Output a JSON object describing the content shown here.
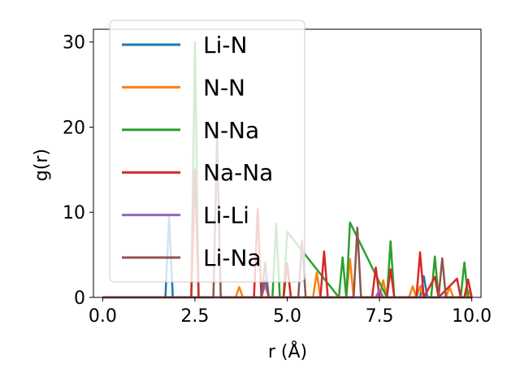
{
  "chart_data": {
    "type": "line",
    "xlabel": "r (Å)",
    "ylabel": "g(r)",
    "xlim": [
      -0.25,
      10.25
    ],
    "ylim": [
      0,
      31.5
    ],
    "xticks": [
      0.0,
      2.5,
      5.0,
      7.5,
      10.0
    ],
    "xtick_labels": [
      "0.0",
      "2.5",
      "5.0",
      "7.5",
      "10.0"
    ],
    "yticks": [
      0,
      10,
      20,
      30
    ],
    "ytick_labels": [
      "0",
      "10",
      "20",
      "30"
    ],
    "grid": false,
    "legend_position": "top-left",
    "series": [
      {
        "name": "Li-N",
        "color": "#1f77b4",
        "x": [
          0,
          1.7,
          1.8,
          1.9,
          4.3,
          4.4,
          4.5,
          7.4,
          7.5,
          7.6,
          8.6,
          8.7,
          8.8,
          10
        ],
        "y": [
          0,
          0,
          9.5,
          0,
          0,
          2.0,
          0,
          0,
          0.8,
          0,
          0,
          2.5,
          0,
          0
        ]
      },
      {
        "name": "N-N",
        "color": "#ff7f0e",
        "x": [
          0,
          3.6,
          3.7,
          3.8,
          4.9,
          5.0,
          5.1,
          5.7,
          5.8,
          5.9,
          6.6,
          6.7,
          6.8,
          7.5,
          7.6,
          7.7,
          8.3,
          8.4,
          8.5,
          8.6,
          8.7,
          9.3,
          9.4,
          9.5,
          9.8,
          9.9,
          10
        ],
        "y": [
          0,
          0,
          1.2,
          0,
          0,
          4.0,
          0,
          0,
          2.9,
          0,
          0,
          4.5,
          0,
          0,
          2.0,
          0,
          0,
          1.3,
          0,
          1.3,
          0,
          0,
          1.2,
          0,
          0,
          0.8,
          0
        ]
      },
      {
        "name": "N-Na",
        "color": "#2ca02c",
        "x": [
          0,
          2.4,
          2.5,
          2.6,
          4.6,
          4.7,
          4.8,
          4.9,
          5.0,
          6.4,
          6.5,
          6.6,
          6.7,
          7.7,
          7.8,
          7.9,
          8.9,
          9.0,
          9.1,
          9.7,
          9.8,
          9.9,
          10
        ],
        "y": [
          0,
          0,
          30.0,
          0,
          0,
          8.7,
          0,
          0,
          7.7,
          0,
          4.7,
          0,
          8.8,
          0,
          6.6,
          0,
          0,
          4.8,
          0,
          0,
          4.1,
          0,
          0
        ]
      },
      {
        "name": "Na-Na",
        "color": "#d62728",
        "x": [
          0,
          2.4,
          2.5,
          2.6,
          4.1,
          4.2,
          4.3,
          4.9,
          5.0,
          5.1,
          5.9,
          6.0,
          6.1,
          7.3,
          7.4,
          7.5,
          7.7,
          7.8,
          7.9,
          8.5,
          8.6,
          8.7,
          9.0,
          9.1,
          9.6,
          9.7,
          9.8,
          9.9,
          10
        ],
        "y": [
          0,
          0,
          15.0,
          0,
          0,
          10.4,
          0,
          0,
          4.0,
          0,
          0,
          5.4,
          0,
          0,
          3.5,
          0,
          0,
          3.3,
          0,
          0,
          5.3,
          0,
          2.4,
          0,
          2.2,
          0,
          0,
          2.1,
          0
        ]
      },
      {
        "name": "Li-Li",
        "color": "#9467bd",
        "x": [
          0,
          4.3,
          4.4,
          4.5,
          7.4,
          7.5,
          7.6,
          10
        ],
        "y": [
          0,
          0,
          1.5,
          0,
          0,
          0.9,
          0,
          0
        ]
      },
      {
        "name": "Li-Na",
        "color": "#8c564b",
        "x": [
          0,
          3.0,
          3.1,
          3.2,
          4.3,
          4.4,
          4.5,
          5.3,
          5.4,
          5.5,
          6.8,
          6.9,
          7.0,
          9.1,
          9.2,
          9.3,
          10
        ],
        "y": [
          0,
          0,
          18.7,
          0,
          0,
          4.1,
          0,
          0,
          6.7,
          0,
          0,
          8.2,
          0,
          0,
          4.6,
          0,
          0
        ]
      }
    ]
  }
}
